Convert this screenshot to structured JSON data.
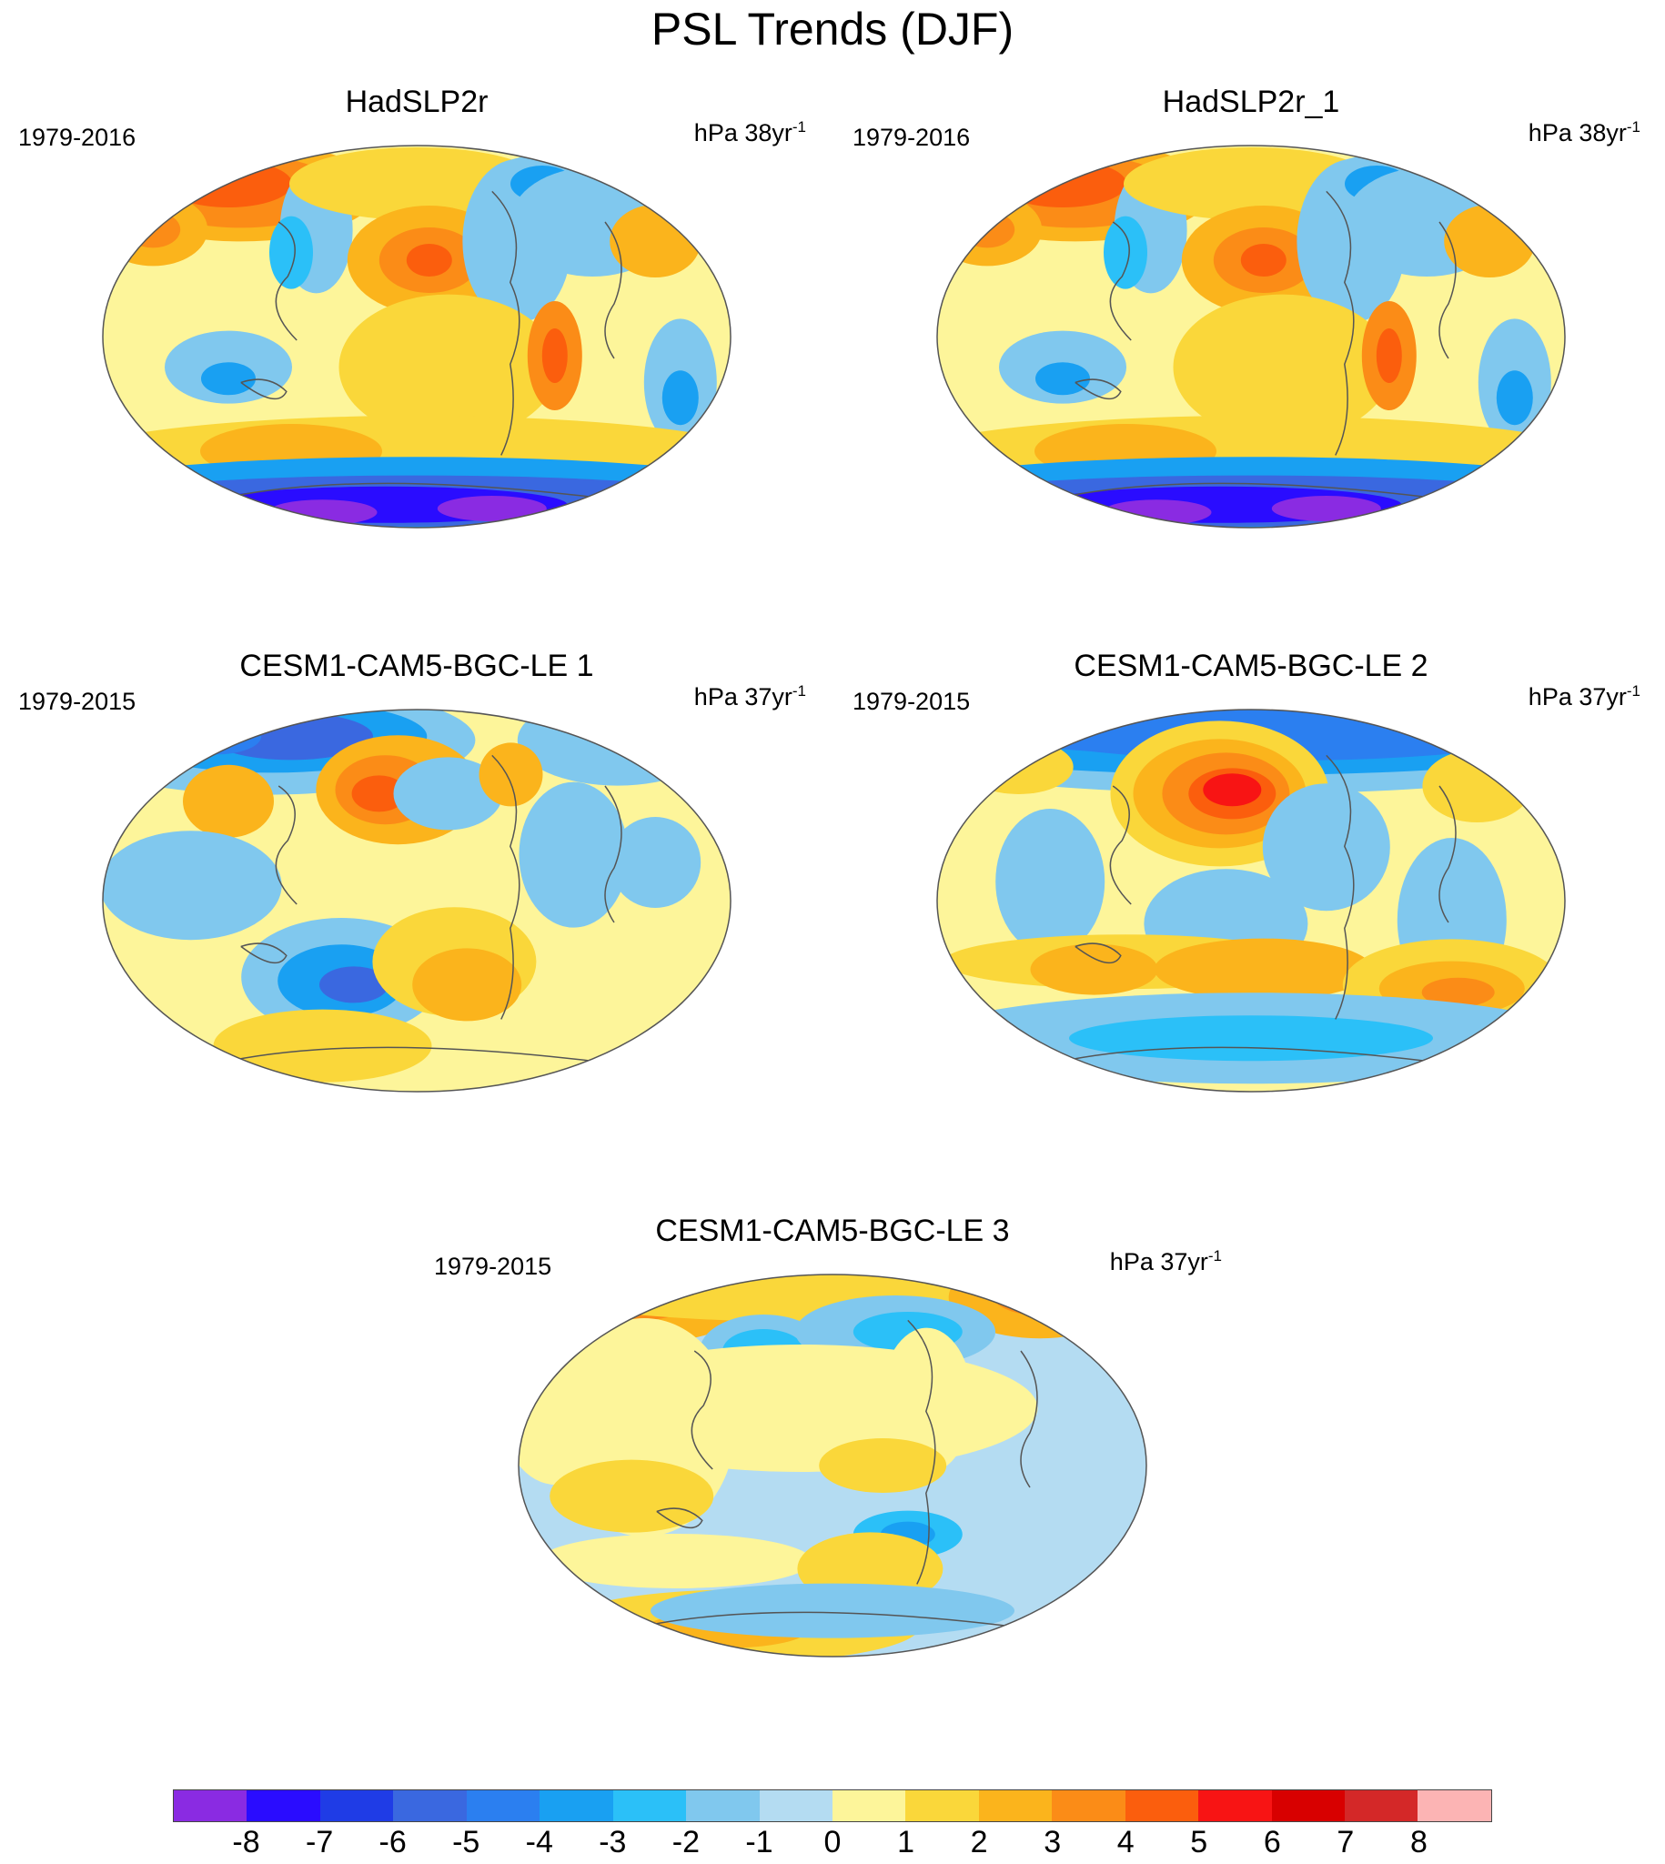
{
  "title": "PSL Trends (DJF)",
  "panels": [
    {
      "id": "p1",
      "title": "HadSLP2r",
      "period": "1979-2016",
      "units": "hPa 38yr",
      "exp": "-1",
      "pattern": "obs"
    },
    {
      "id": "p2",
      "title": "HadSLP2r_1",
      "period": "1979-2016",
      "units": "hPa 38yr",
      "exp": "-1",
      "pattern": "obs"
    },
    {
      "id": "p3",
      "title": "CESM1-CAM5-BGC-LE 1",
      "period": "1979-2015",
      "units": "hPa 37yr",
      "exp": "-1",
      "pattern": "le1"
    },
    {
      "id": "p4",
      "title": "CESM1-CAM5-BGC-LE 2",
      "period": "1979-2015",
      "units": "hPa 37yr",
      "exp": "-1",
      "pattern": "le2"
    },
    {
      "id": "p5",
      "title": "CESM1-CAM5-BGC-LE 3",
      "period": "1979-2015",
      "units": "hPa 37yr",
      "exp": "-1",
      "pattern": "le3"
    }
  ],
  "colorbar": {
    "labels": [
      "-8",
      "-7",
      "-6",
      "-5",
      "-4",
      "-3",
      "-2",
      "-1",
      "0",
      "1",
      "2",
      "3",
      "4",
      "5",
      "6",
      "7",
      "8"
    ],
    "colors": [
      "#8a2be2",
      "#2a0cff",
      "#1f3ce6",
      "#3a68e0",
      "#2b7ff0",
      "#19a0f2",
      "#2bc0f8",
      "#80c8ee",
      "#b4dcf2",
      "#fdf59a",
      "#fad73a",
      "#fbb41c",
      "#fb8c17",
      "#fb5e0d",
      "#f81414",
      "#d80000",
      "#d42828",
      "#fcb4b4"
    ]
  }
}
